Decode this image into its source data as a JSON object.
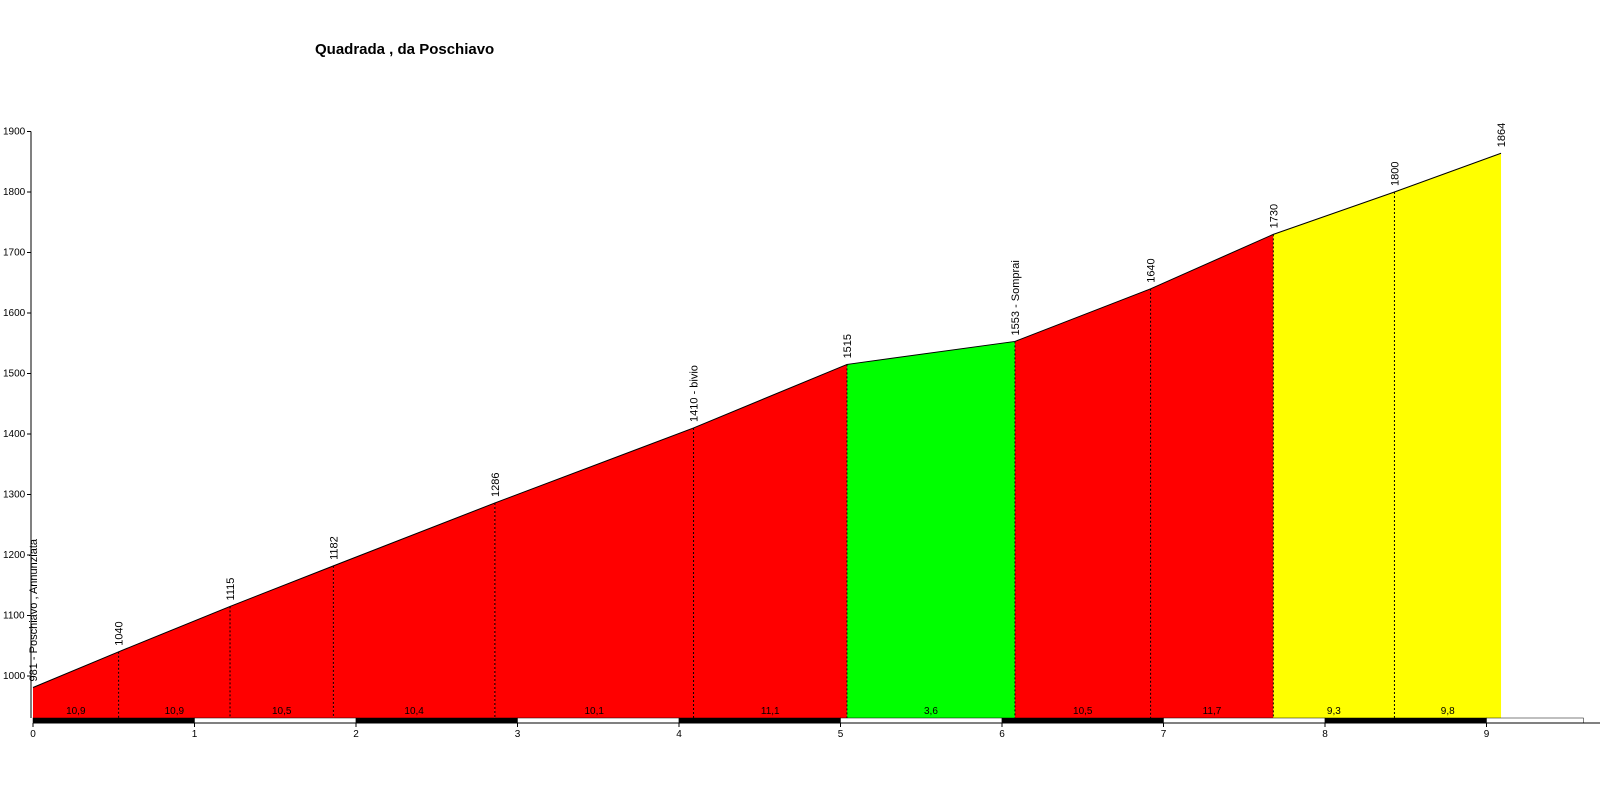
{
  "chart_data": {
    "type": "area",
    "title": "Quadrada , da Poschiavo",
    "xlabel": "",
    "ylabel": "",
    "xlim": [
      0,
      9.6
    ],
    "ylim": [
      920,
      1900
    ],
    "y_ticks": [
      1000,
      1100,
      1200,
      1300,
      1400,
      1500,
      1600,
      1700,
      1800,
      1900
    ],
    "x_ticks": [
      0,
      1,
      2,
      3,
      4,
      5,
      6,
      7,
      8,
      9
    ],
    "points": [
      {
        "x": 0.0,
        "y": 981,
        "label": "981 - Poschiavo , Annunziata"
      },
      {
        "x": 0.53,
        "y": 1040,
        "label": "1040"
      },
      {
        "x": 1.22,
        "y": 1115,
        "label": "1115"
      },
      {
        "x": 1.86,
        "y": 1182,
        "label": "1182"
      },
      {
        "x": 2.86,
        "y": 1286,
        "label": "1286"
      },
      {
        "x": 4.09,
        "y": 1410,
        "label": "1410 - bivio"
      },
      {
        "x": 5.04,
        "y": 1515,
        "label": "1515"
      },
      {
        "x": 6.08,
        "y": 1553,
        "label": "1553 - Somprai"
      },
      {
        "x": 6.92,
        "y": 1640,
        "label": "1640"
      },
      {
        "x": 7.68,
        "y": 1730,
        "label": "1730"
      },
      {
        "x": 8.43,
        "y": 1800,
        "label": "1800"
      },
      {
        "x": 9.09,
        "y": 1864,
        "label": "1864"
      }
    ],
    "segments": [
      {
        "gradient": "10,9",
        "color": "#ff0000"
      },
      {
        "gradient": "10,9",
        "color": "#ff0000"
      },
      {
        "gradient": "10,5",
        "color": "#ff0000"
      },
      {
        "gradient": "10,4",
        "color": "#ff0000"
      },
      {
        "gradient": "10,1",
        "color": "#ff0000"
      },
      {
        "gradient": "11,1",
        "color": "#ff0000"
      },
      {
        "gradient": "3,6",
        "color": "#00ff00"
      },
      {
        "gradient": "10,5",
        "color": "#ff0000"
      },
      {
        "gradient": "11,7",
        "color": "#ff0000"
      },
      {
        "gradient": "9,3",
        "color": "#ffff00"
      },
      {
        "gradient": "9,8",
        "color": "#ffff00"
      }
    ],
    "grid": false,
    "legend": "none"
  }
}
